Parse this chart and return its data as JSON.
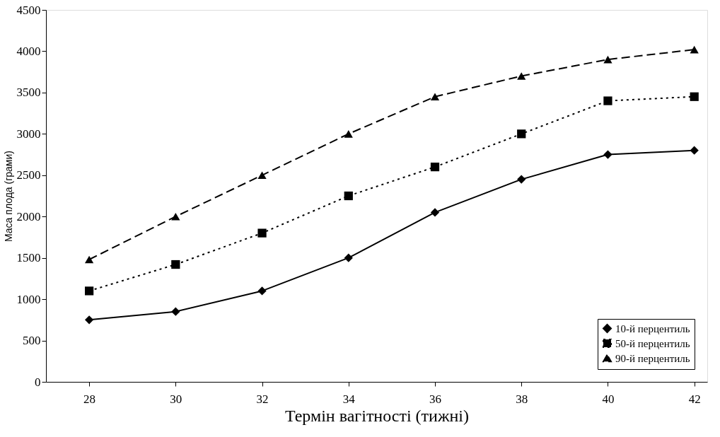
{
  "chart_data": {
    "type": "line",
    "xlabel": "Термін вагітності (тижні)",
    "ylabel": "Маса плода (грами)",
    "x": [
      28,
      30,
      32,
      34,
      36,
      38,
      40,
      42
    ],
    "series": [
      {
        "name": "10-й перцентиль",
        "color": "#000000",
        "marker": "diamond",
        "line_style": "solid",
        "values": [
          750,
          850,
          1100,
          1500,
          2050,
          2450,
          2750,
          2800
        ]
      },
      {
        "name": "50-й перцентиль",
        "color": "#000000",
        "marker": "square",
        "line_style": "dotted",
        "values": [
          1100,
          1420,
          1800,
          2250,
          2600,
          3000,
          3400,
          3450
        ]
      },
      {
        "name": "90-й перцентиль",
        "color": "#000000",
        "marker": "triangle",
        "line_style": "dashed",
        "values": [
          1480,
          2000,
          2500,
          3000,
          3450,
          3700,
          3900,
          4020
        ]
      }
    ],
    "xlim": [
      27,
      42.3
    ],
    "xticks": [
      28,
      30,
      32,
      34,
      36,
      38,
      40,
      42
    ],
    "ylim": [
      0,
      4500
    ],
    "yticks": [
      0,
      500,
      1000,
      1500,
      2000,
      2500,
      3000,
      3500,
      4000,
      4500
    ],
    "grid": false,
    "legend": "bottom right"
  }
}
